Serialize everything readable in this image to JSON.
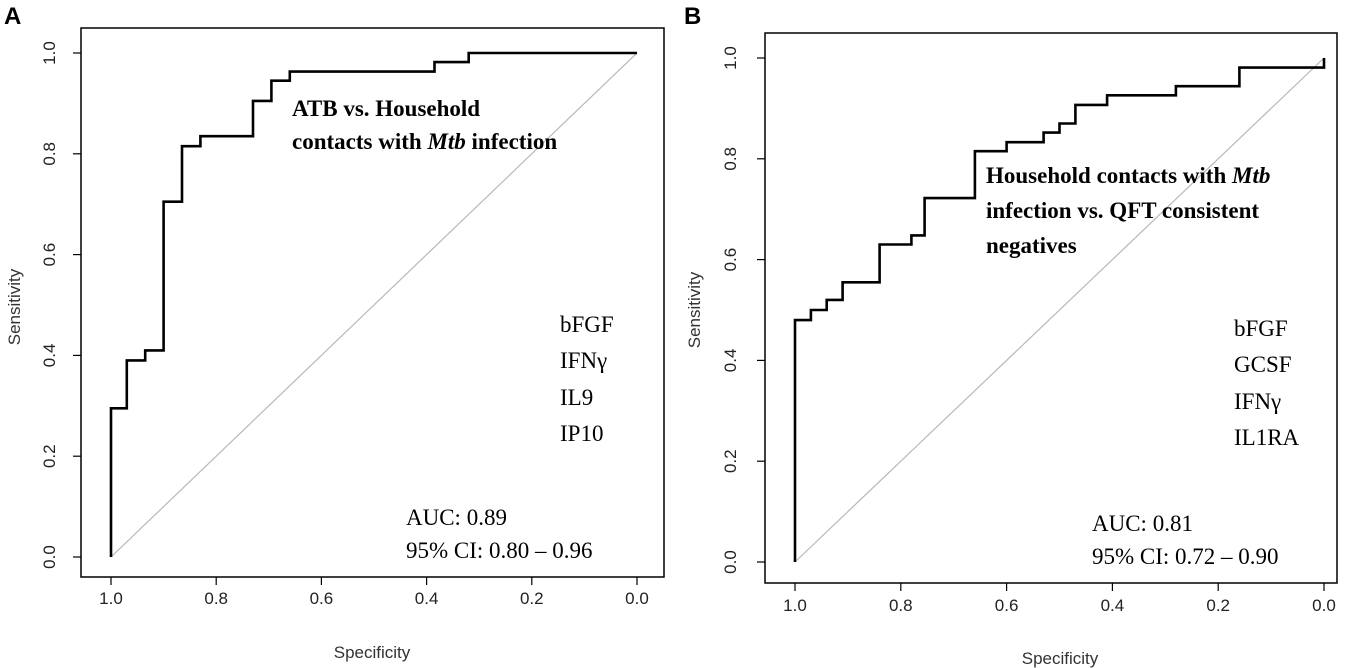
{
  "panels": [
    {
      "letter": "A",
      "chart_data": {
        "type": "line",
        "subtype": "roc",
        "xlabel": "Specificity",
        "ylabel": "Sensitivity",
        "xlim": [
          1.0,
          0.0
        ],
        "ylim": [
          0.0,
          1.0
        ],
        "x_ticks": [
          "1.0",
          "0.8",
          "0.6",
          "0.4",
          "0.2",
          "0.0"
        ],
        "y_ticks": [
          "0.0",
          "0.2",
          "0.4",
          "0.6",
          "0.8",
          "1.0"
        ],
        "title_lines": [
          [
            {
              "text": "ATB vs. Household",
              "italic": false
            }
          ],
          [
            {
              "text": "contacts with ",
              "italic": false
            },
            {
              "text": "Mtb",
              "italic": true
            },
            {
              "text": " infection",
              "italic": false
            }
          ]
        ],
        "analytes": [
          "bFGF",
          "IFNγ",
          "IL9",
          "IP10"
        ],
        "auc_line": "AUC:  0.89",
        "ci_line": "95% CI: 0.80 – 0.96",
        "reference_line": "diagonal",
        "series": [
          {
            "name": "ROC",
            "specificity": [
              1.0,
              1.0,
              0.97,
              0.97,
              0.935,
              0.935,
              0.9,
              0.9,
              0.865,
              0.865,
              0.83,
              0.83,
              0.73,
              0.73,
              0.695,
              0.695,
              0.66,
              0.66,
              0.385,
              0.385,
              0.32,
              0.32,
              0.0,
              0.0
            ],
            "sensitivity": [
              0.0,
              0.295,
              0.295,
              0.39,
              0.39,
              0.41,
              0.41,
              0.705,
              0.705,
              0.815,
              0.815,
              0.835,
              0.835,
              0.905,
              0.905,
              0.945,
              0.945,
              0.963,
              0.963,
              0.982,
              0.982,
              1.0,
              1.0,
              1.0
            ]
          }
        ]
      }
    },
    {
      "letter": "B",
      "chart_data": {
        "type": "line",
        "subtype": "roc",
        "xlabel": "Specificity",
        "ylabel": "Sensitivity",
        "xlim": [
          1.0,
          0.0
        ],
        "ylim": [
          0.0,
          1.0
        ],
        "x_ticks": [
          "1.0",
          "0.8",
          "0.6",
          "0.4",
          "0.2",
          "0.0"
        ],
        "y_ticks": [
          "0.0",
          "0.2",
          "0.4",
          "0.6",
          "0.8",
          "1.0"
        ],
        "title_lines": [
          [
            {
              "text": "Household contacts with ",
              "italic": false
            },
            {
              "text": "Mtb",
              "italic": true
            }
          ],
          [
            {
              "text": "infection vs. QFT consistent",
              "italic": false
            }
          ],
          [
            {
              "text": "negatives",
              "italic": false
            }
          ]
        ],
        "analytes": [
          "bFGF",
          "GCSF",
          "IFNγ",
          "IL1RA"
        ],
        "auc_line": "AUC:  0.81",
        "ci_line": "95% CI: 0.72 – 0.90",
        "reference_line": "diagonal",
        "series": [
          {
            "name": "ROC",
            "specificity": [
              1.0,
              1.0,
              0.97,
              0.97,
              0.94,
              0.94,
              0.91,
              0.91,
              0.84,
              0.84,
              0.78,
              0.78,
              0.755,
              0.755,
              0.66,
              0.66,
              0.6,
              0.6,
              0.53,
              0.53,
              0.5,
              0.5,
              0.47,
              0.47,
              0.41,
              0.41,
              0.28,
              0.28,
              0.16,
              0.16,
              0.0,
              0.0
            ],
            "sensitivity": [
              0.0,
              0.48,
              0.48,
              0.5,
              0.5,
              0.52,
              0.52,
              0.555,
              0.555,
              0.63,
              0.63,
              0.648,
              0.648,
              0.722,
              0.722,
              0.815,
              0.815,
              0.833,
              0.833,
              0.852,
              0.852,
              0.87,
              0.87,
              0.907,
              0.907,
              0.926,
              0.926,
              0.944,
              0.944,
              0.981,
              0.981,
              1.0
            ]
          }
        ]
      }
    }
  ]
}
